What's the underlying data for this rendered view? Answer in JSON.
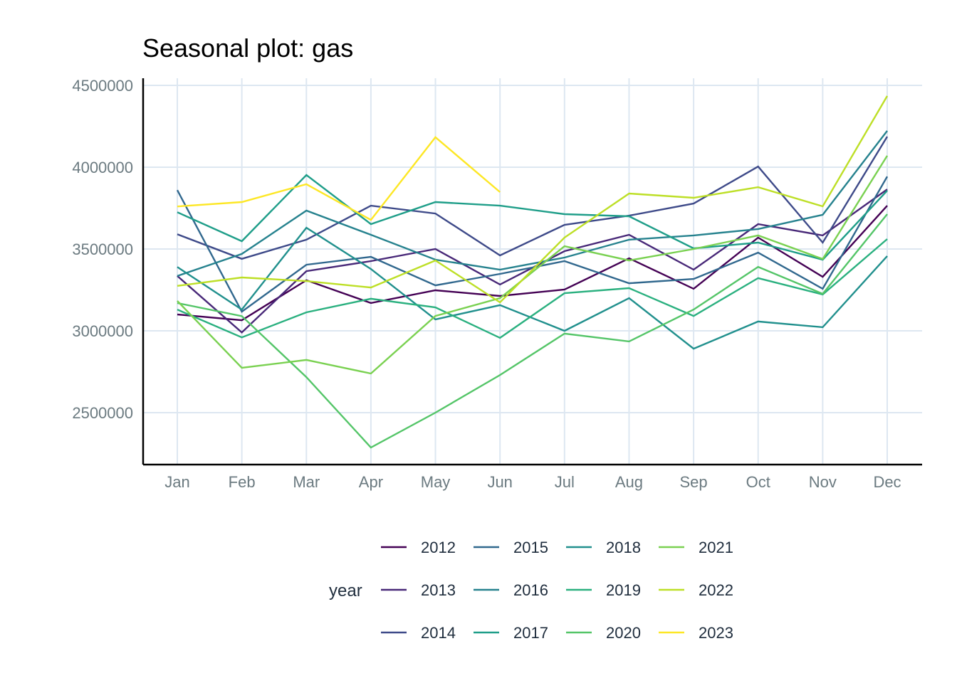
{
  "chart_data": {
    "type": "line",
    "title": "Seasonal plot: gas",
    "xlabel": "",
    "ylabel": "",
    "x": [
      "Jan",
      "Feb",
      "Mar",
      "Apr",
      "May",
      "Jun",
      "Jul",
      "Aug",
      "Sep",
      "Oct",
      "Nov",
      "Dec"
    ],
    "ylim": [
      2200000,
      4550000
    ],
    "yticks": [
      2500000,
      3000000,
      3500000,
      4000000,
      4500000
    ],
    "ytick_labels": [
      "2500000",
      "3000000",
      "3500000",
      "4000000",
      "4500000"
    ],
    "grid": true,
    "legend": {
      "title": "year",
      "position": "bottom",
      "columns": 4
    },
    "series": [
      {
        "name": "2012",
        "color": "#440154",
        "values": [
          3100000,
          3065000,
          3309000,
          3170000,
          3248000,
          3213000,
          3252000,
          3443000,
          3257000,
          3570000,
          3330000,
          3765000
        ]
      },
      {
        "name": "2013",
        "color": "#482576",
        "values": [
          3335000,
          2990000,
          3365000,
          3426000,
          3500000,
          3283000,
          3487000,
          3587000,
          3374000,
          3652000,
          3583000,
          3865000
        ]
      },
      {
        "name": "2014",
        "color": "#3e4a89",
        "values": [
          3590000,
          3440000,
          3557000,
          3765000,
          3717000,
          3461000,
          3648000,
          3704000,
          3778000,
          4004000,
          3539000,
          4187000
        ]
      },
      {
        "name": "2015",
        "color": "#31688e",
        "values": [
          3860000,
          3117000,
          3404000,
          3452000,
          3278000,
          3348000,
          3426000,
          3291000,
          3317000,
          3478000,
          3257000,
          3943000
        ]
      },
      {
        "name": "2016",
        "color": "#26828e",
        "values": [
          3335000,
          3470000,
          3735000,
          3587000,
          3435000,
          3374000,
          3448000,
          3557000,
          3583000,
          3622000,
          3709000,
          4222000
        ]
      },
      {
        "name": "2017",
        "color": "#1f9e89",
        "values": [
          3725000,
          3548000,
          3952000,
          3652000,
          3787000,
          3765000,
          3713000,
          3700000,
          3504000,
          3539000,
          3435000,
          3857000
        ]
      },
      {
        "name": "2018",
        "color": "#35b779",
        "values": [
          3390000,
          3130000,
          3630000,
          3378000,
          3070000,
          3157000,
          3000000,
          3200000,
          2891000,
          3057000,
          3022000,
          3457000
        ]
      },
      {
        "name": "2019",
        "color": "#6ece58",
        "values": [
          3130000,
          2960000,
          3113000,
          3196000,
          3143000,
          2957000,
          3230000,
          3261000,
          3091000,
          3322000,
          3222000,
          3561000
        ]
      },
      {
        "name": "2020",
        "color": "#b5de2b",
        "values": [
          3170000,
          3090000,
          2717000,
          2287000,
          2500000,
          2730000,
          2983000,
          2935000,
          3130000,
          3391000,
          3226000,
          3713000
        ]
      },
      {
        "name": "2021",
        "color": "#fde725",
        "values": [
          3183000,
          2774000,
          2822000,
          2739000,
          3091000,
          3200000,
          3517000,
          3430000,
          3500000,
          3583000,
          3439000,
          4070000
        ]
      },
      {
        "name": "2022",
        "color": "#c8e020",
        "values": [
          3275000,
          3326000,
          3304000,
          3265000,
          3430000,
          3174000,
          3570000,
          3839000,
          3813000,
          3878000,
          3761000,
          4435000
        ]
      },
      {
        "name": "2023",
        "color": "#fde725",
        "values": [
          3760000,
          3787000,
          3896000,
          3678000,
          4183000,
          3848000,
          null,
          null,
          null,
          null,
          null,
          null
        ]
      }
    ]
  }
}
